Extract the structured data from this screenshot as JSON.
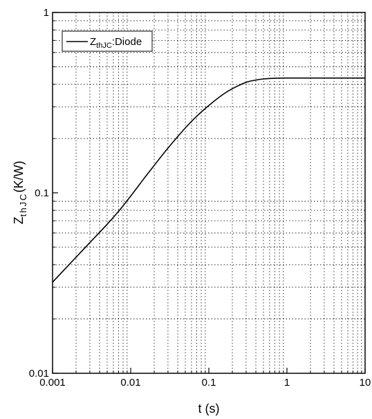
{
  "chart_data": {
    "type": "line",
    "xscale": "log",
    "yscale": "log",
    "xlim": [
      0.001,
      10
    ],
    "ylim": [
      0.01,
      1
    ],
    "grid": true,
    "legend_position": "top-left",
    "x_ticks": [
      "0.001",
      "0.01",
      "0.1",
      "1",
      "10"
    ],
    "y_ticks": [
      "0.01",
      "0.1",
      "1"
    ],
    "xlabel": "t (s)",
    "ylabel": {
      "main": "Z",
      "sub": "thJC",
      "unit": "(K/W)"
    },
    "series": [
      {
        "legend": {
          "main": "Z",
          "sub": "thJC",
          "rest": ":Diode"
        },
        "color": "#000000",
        "x": [
          0.001,
          0.002,
          0.003,
          0.005,
          0.007,
          0.01,
          0.015,
          0.02,
          0.03,
          0.05,
          0.07,
          0.1,
          0.15,
          0.2,
          0.3,
          0.4,
          0.5,
          0.7,
          1,
          2,
          5,
          10
        ],
        "y": [
          0.032,
          0.044,
          0.053,
          0.067,
          0.079,
          0.096,
          0.121,
          0.142,
          0.177,
          0.229,
          0.266,
          0.305,
          0.35,
          0.378,
          0.41,
          0.422,
          0.428,
          0.432,
          0.433,
          0.433,
          0.433,
          0.433
        ]
      }
    ]
  }
}
